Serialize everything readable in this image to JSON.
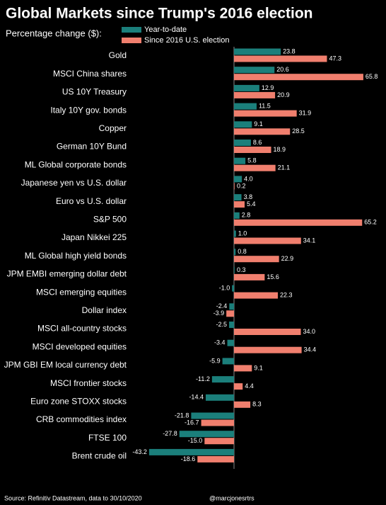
{
  "chart_data": {
    "type": "hbar",
    "title": "Global Markets since Trump's 2016 election",
    "subtitle": "Percentage change ($):",
    "source": "Source: Refinitiv Datastream, data to 30/10/2020",
    "credit": "@marcjonesrtrs",
    "categories": [
      "Gold",
      "MSCI China shares",
      "US 10Y Treasury",
      "Italy 10Y gov. bonds",
      "Copper",
      "German 10Y Bund",
      "ML Global corporate bonds",
      "Japanese yen vs U.S. dollar",
      "Euro vs U.S. dollar",
      "S&P 500",
      "Japan Nikkei 225",
      "ML Global high yield bonds",
      "JPM EMBI emerging dollar debt",
      "MSCI emerging equities",
      "Dollar index",
      "MSCI all-country stocks",
      "MSCI developed equities",
      "JPM GBI EM local currency debt",
      "MSCI frontier stocks",
      "Euro zone STOXX stocks",
      "CRB commodities index",
      "FTSE 100",
      "Brent crude oil"
    ],
    "series": [
      {
        "name": "Year-to-date",
        "color": "#1b7f7b",
        "values": [
          23.8,
          20.6,
          12.9,
          11.5,
          9.1,
          8.6,
          5.8,
          4,
          3.8,
          2.8,
          1,
          0.8,
          0.3,
          -1,
          -2.4,
          -2.5,
          -3.4,
          -5.9,
          -11.2,
          -14.4,
          -21.8,
          -27.8,
          -43.2
        ],
        "value_labels": [
          "23.8",
          "20.6",
          "12.9",
          "11.5",
          "9.1",
          "8.6",
          "5.8",
          "4.0",
          "3.8",
          "2.8",
          "1.0",
          "0.8",
          "0.3",
          "-1.0",
          "-2.4",
          "-2.5",
          "-3.4",
          "-5.9",
          "-11.2",
          "-14.4",
          "-21.8",
          "-27.8",
          "-43.2"
        ]
      },
      {
        "name": "Since 2016 U.S. election",
        "color": "#f07f6e",
        "values": [
          47.3,
          65.8,
          20.9,
          31.9,
          28.5,
          18.9,
          21.1,
          0.2,
          5.4,
          65.2,
          34.1,
          22.9,
          15.6,
          22.3,
          -3.9,
          34,
          34.4,
          9.1,
          4.4,
          8.3,
          -16.7,
          -15,
          -18.6
        ],
        "value_labels": [
          "47.3",
          "65.8",
          "20.9",
          "31.9",
          "28.5",
          "18.9",
          "21.1",
          "0.2",
          "5.4",
          "65.2",
          "34.1",
          "22.9",
          "15.6",
          "22.3",
          "-3.9",
          "34.0",
          "34.4",
          "9.1",
          "4.4",
          "8.3",
          "-16.7",
          "-15.0",
          "-18.6"
        ]
      }
    ],
    "xlim": [
      -50,
      70
    ]
  }
}
